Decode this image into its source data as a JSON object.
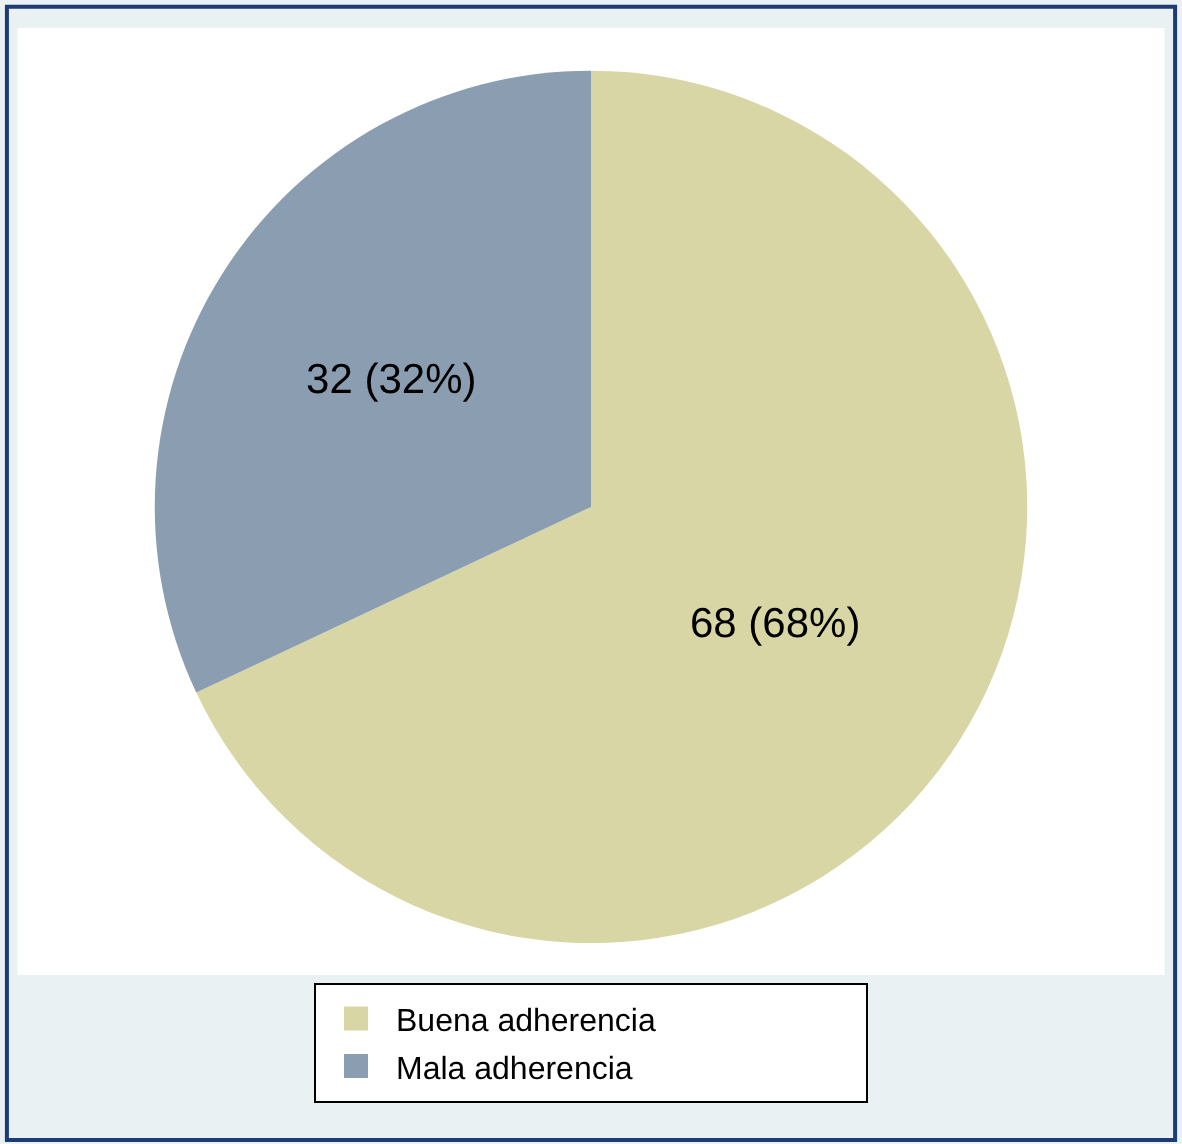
{
  "chart_data": {
    "type": "pie",
    "categories": [
      "Buena adherencia",
      "Mala adherencia"
    ],
    "values": [
      68,
      32
    ],
    "colors": [
      "#d9d6a5",
      "#8a9db1"
    ],
    "value_labels": [
      "68 (68%)",
      "32 (32%)"
    ],
    "legend": "bottom"
  }
}
